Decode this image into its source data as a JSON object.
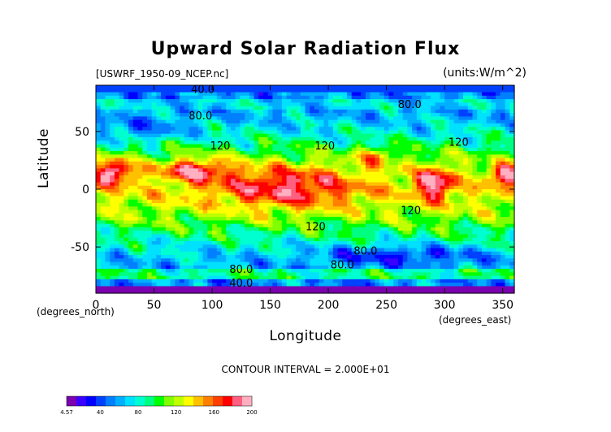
{
  "chart_data": {
    "type": "heatmap",
    "title": "Upward Solar Radiation Flux",
    "file_label": "[USWRF_1950-09_NCEP.nc]",
    "units_label": "(units:W/m^2)",
    "xlabel": "Longitude",
    "ylabel": "Latitude",
    "x_unit_note": "(degrees_east)",
    "y_unit_note": "(degrees_north)",
    "xlim": [
      0,
      360
    ],
    "ylim": [
      -90,
      90
    ],
    "x_ticks": [
      0,
      50,
      100,
      150,
      200,
      250,
      300,
      350
    ],
    "y_ticks": [
      -50,
      0,
      50
    ],
    "contour_interval_text": "CONTOUR INTERVAL = 2.000E+01",
    "contour_labels": [
      {
        "text": "40.0",
        "lon": 92,
        "lat": 87
      },
      {
        "text": "80.0",
        "lon": 90,
        "lat": 64
      },
      {
        "text": "80.0",
        "lon": 270,
        "lat": 74
      },
      {
        "text": "120",
        "lon": 107,
        "lat": 38
      },
      {
        "text": "120",
        "lon": 197,
        "lat": 38
      },
      {
        "text": "120",
        "lon": 312,
        "lat": 41
      },
      {
        "text": "120",
        "lon": 189,
        "lat": -32
      },
      {
        "text": "120",
        "lon": 271,
        "lat": -18
      },
      {
        "text": "80.0",
        "lon": 232,
        "lat": -53
      },
      {
        "text": "80.0",
        "lon": 212,
        "lat": -65
      },
      {
        "text": "80.0",
        "lon": 125,
        "lat": -69
      },
      {
        "text": "40.0",
        "lon": 125,
        "lat": -81
      }
    ],
    "field_description_regions": [
      {
        "lon": [
          0,
          360
        ],
        "lat": [
          80,
          90
        ],
        "value": 40
      },
      {
        "lon": [
          0,
          360
        ],
        "lat": [
          -90,
          -80
        ],
        "value": 20
      },
      {
        "lon": [
          0,
          30
        ],
        "lat": [
          5,
          25
        ],
        "value": 190
      },
      {
        "lon": [
          60,
          110
        ],
        "lat": [
          10,
          25
        ],
        "value": 170
      },
      {
        "lon": [
          275,
          310
        ],
        "lat": [
          -5,
          15
        ],
        "value": 180
      },
      {
        "lon": [
          340,
          360
        ],
        "lat": [
          5,
          20
        ],
        "value": 180
      },
      {
        "lon": [
          100,
          230
        ],
        "lat": [
          -25,
          20
        ],
        "value": 140
      },
      {
        "lon": [
          170,
          350
        ],
        "lat": [
          -70,
          -50
        ],
        "value": 80
      }
    ],
    "colorbar": {
      "min_label": "4.57",
      "tick_labels": [
        "40",
        "80",
        "120",
        "160",
        "200"
      ],
      "range": [
        4.57,
        200
      ],
      "colors": [
        "#7b00b0",
        "#3a00ff",
        "#0000ff",
        "#0040ff",
        "#0080ff",
        "#00b0ff",
        "#00e0ff",
        "#00ffd0",
        "#00ff80",
        "#00ff00",
        "#80ff00",
        "#c0ff00",
        "#ffff00",
        "#ffc000",
        "#ff8000",
        "#ff4000",
        "#ff0000",
        "#ff6080",
        "#ffb0c0"
      ]
    },
    "grid": false
  }
}
